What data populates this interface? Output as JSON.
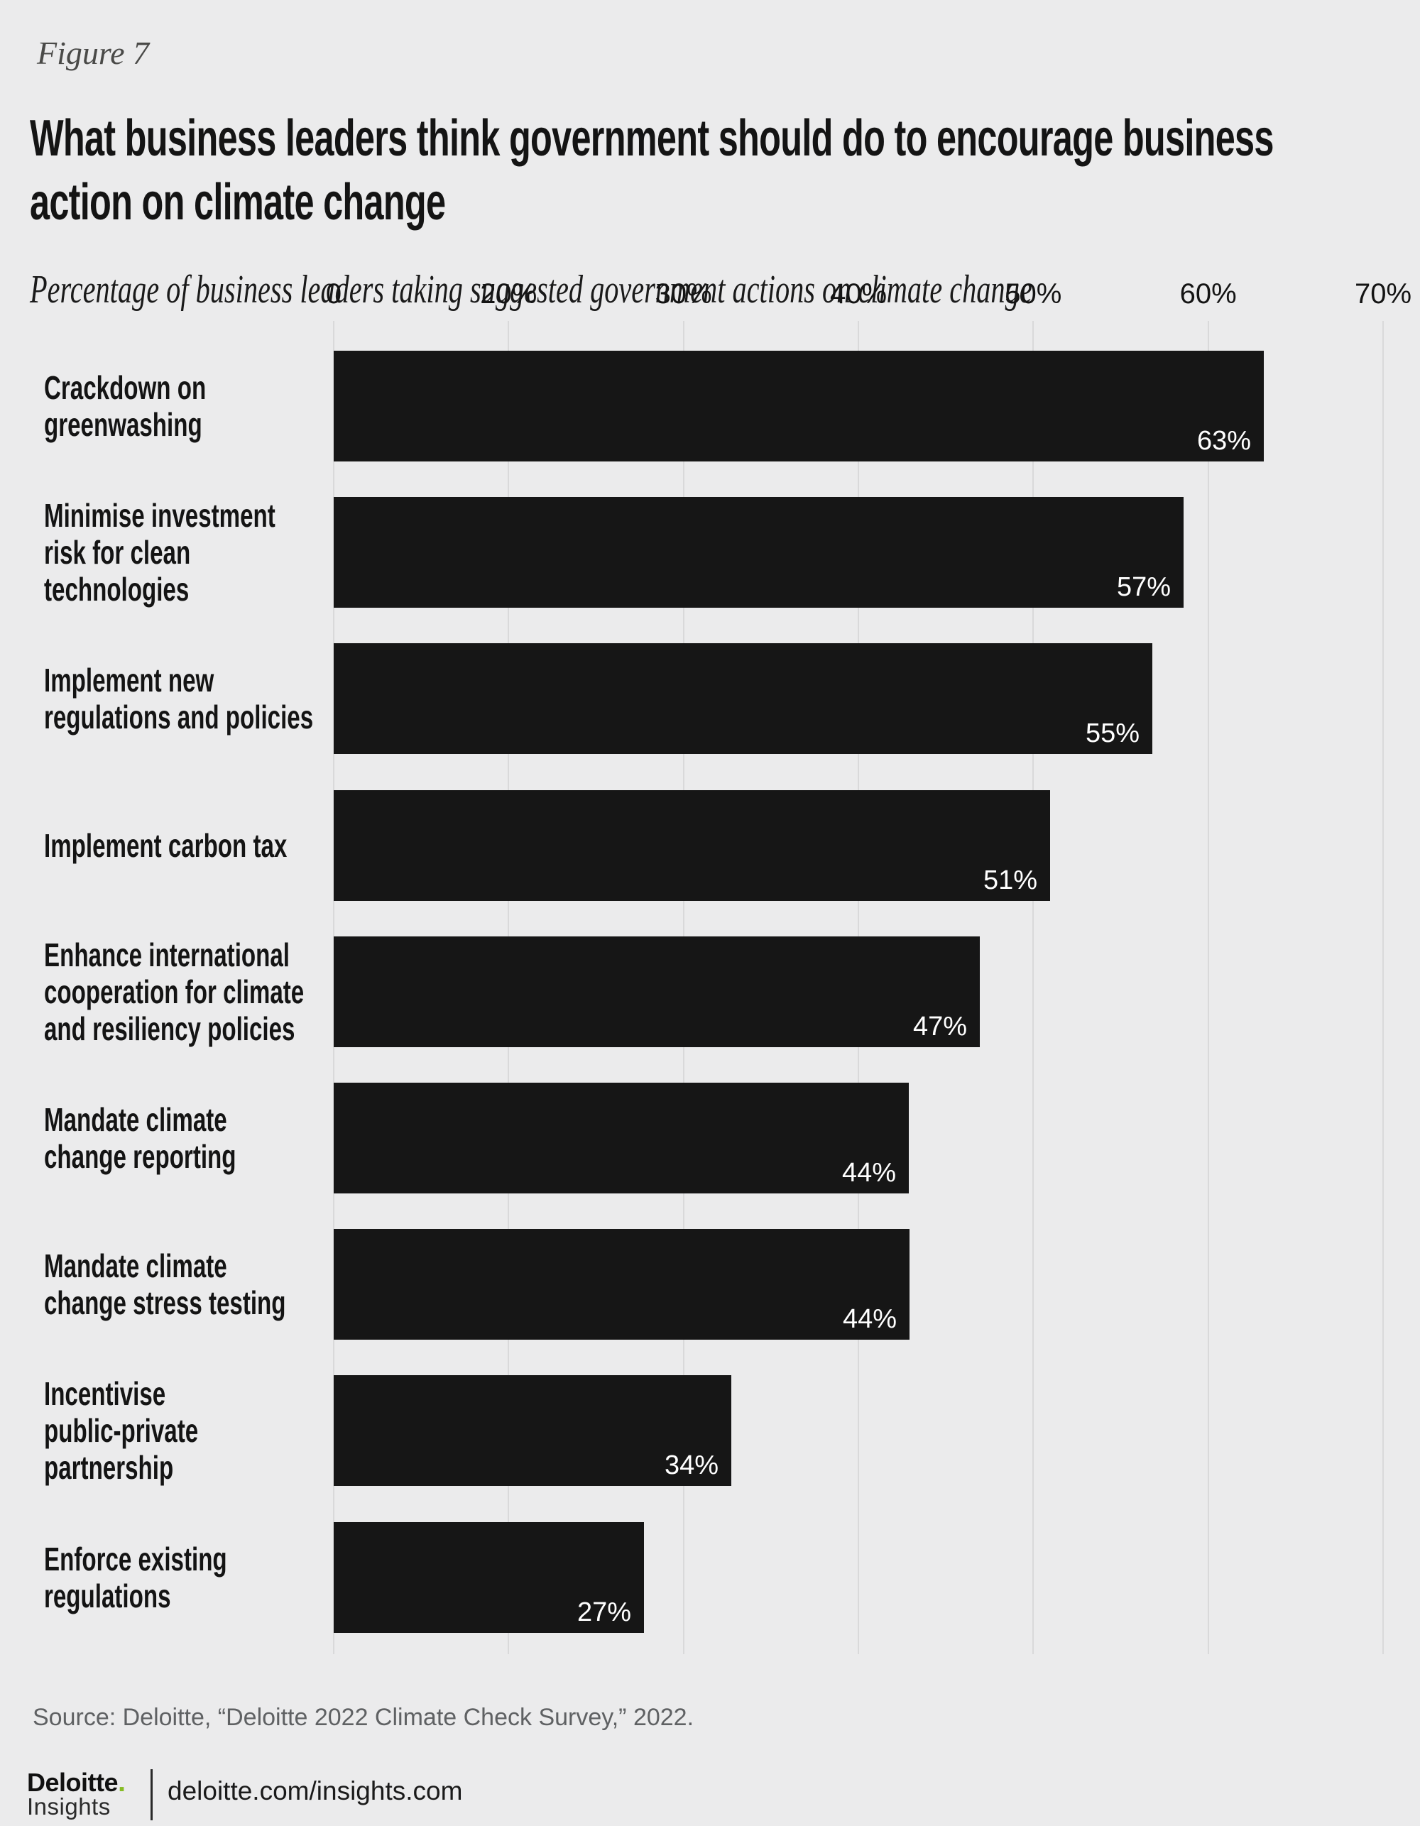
{
  "figure_label": "Figure 7",
  "title_lines": [
    "What business leaders think government should do to encourage business",
    "action on climate change"
  ],
  "subtitle": "Percentage of business leaders taking suggested government actions on climate change",
  "chart_data": {
    "type": "bar",
    "orientation": "horizontal",
    "title": "What business leaders think government should do to encourage business action on climate change",
    "subtitle": "Percentage of business leaders taking suggested government actions on climate change",
    "categories": [
      "Crackdown on greenwashing",
      "Minimise investment risk for clean technologies",
      "Implement new regulations and policies",
      "Implement carbon tax",
      "Enhance international cooperation for climate and resiliency policies",
      "Mandate climate change reporting",
      "Mandate climate change stress testing",
      "Incentivise public-private partnership",
      "Enforce existing regulations"
    ],
    "category_lines": [
      [
        "Crackdown on",
        "greenwashing"
      ],
      [
        "Minimise investment",
        "risk for clean",
        "technologies"
      ],
      [
        "Implement new",
        "regulations and policies"
      ],
      [
        "Implement carbon tax"
      ],
      [
        "Enhance international",
        "cooperation for climate",
        "and resiliency policies"
      ],
      [
        "Mandate climate",
        "change reporting"
      ],
      [
        "Mandate climate",
        "change stress testing"
      ],
      [
        "Incentivise",
        "public-private",
        "partnership"
      ],
      [
        "Enforce existing",
        "regulations"
      ]
    ],
    "values": [
      63,
      57,
      55,
      51,
      47,
      44,
      44,
      34,
      27
    ],
    "value_labels": [
      "63%",
      "57%",
      "55%",
      "51%",
      "47%",
      "44%",
      "44%",
      "34%",
      "27%"
    ],
    "x_axis_ticks": [
      "0",
      "20%",
      "30%",
      "40%",
      "50%",
      "60%",
      "70%"
    ],
    "xlim": [
      0,
      70
    ],
    "bar_end_fractions": [
      0.886,
      0.81,
      0.78,
      0.683,
      0.616,
      0.548,
      0.549,
      0.379,
      0.296
    ],
    "grid": true,
    "legend": false,
    "bar_color": "#161616",
    "gridline_color": "#d9d9da",
    "value_label_color": "#ffffff",
    "background_color": "#ebebec"
  },
  "source": "Source: Deloitte, “Deloitte 2022 Climate Check Survey,” 2022.",
  "footer": {
    "brand": "Deloitte",
    "brand_dot": ".",
    "brand_sub": "Insights",
    "url": "deloitte.com/insights.com"
  },
  "colors": {
    "accent_green": "#86bc25",
    "background": "#ebebec",
    "bar": "#161616",
    "gridline": "#d9d9da",
    "source_text": "#5f6163"
  }
}
